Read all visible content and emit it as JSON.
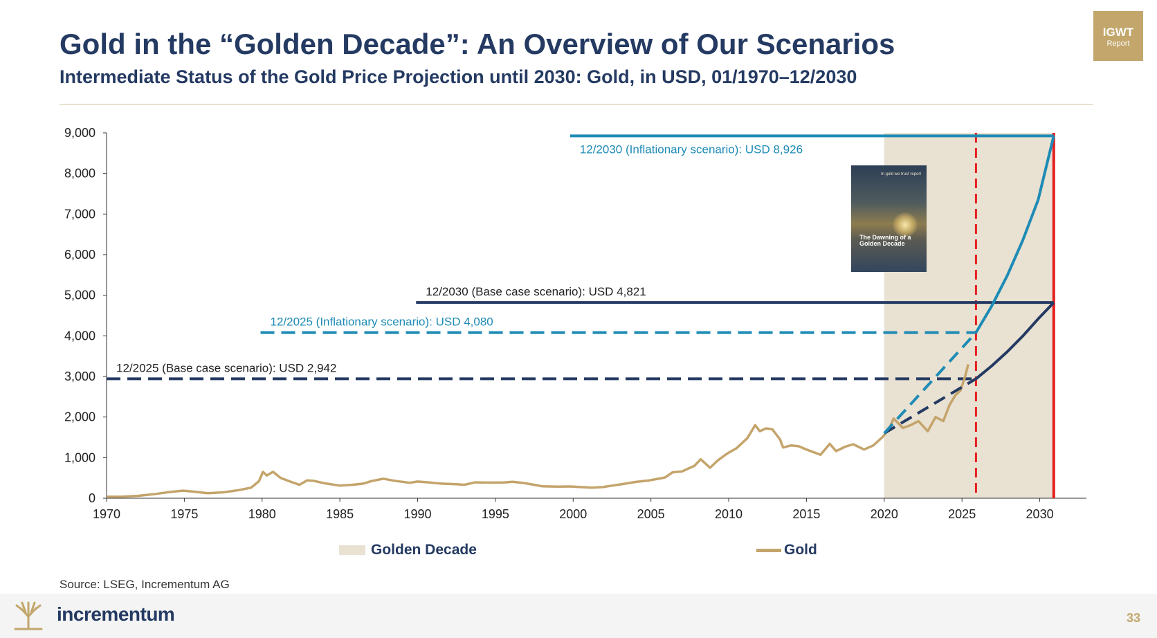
{
  "header": {
    "title": "Gold in the “Golden Decade”: An Overview of Our Scenarios",
    "subtitle": "Intermediate Status of the Gold Price Projection until 2030: Gold, in USD, 01/1970–12/2030",
    "badge_line1": "IGWT",
    "badge_line2": "Report"
  },
  "cover": {
    "header_text": "In gold we trust report",
    "title_text": "The Dawning of a Golden Decade"
  },
  "colors": {
    "navy": "#243a62",
    "teal": "#1e8bb5",
    "gold": "#c4a46b",
    "golden_decade_band": "#e9e1d2",
    "red": "#e51f1f"
  },
  "chart_data": {
    "type": "line",
    "x_range": [
      1970,
      2033
    ],
    "ylim": [
      0,
      9000
    ],
    "x_ticks": [
      1970,
      1975,
      1980,
      1985,
      1990,
      1995,
      2000,
      2005,
      2010,
      2015,
      2020,
      2025,
      2030
    ],
    "y_ticks": [
      0,
      1000,
      2000,
      3000,
      4000,
      5000,
      6000,
      7000,
      8000,
      9000
    ],
    "y_tick_labels": [
      "0",
      "1,000",
      "2,000",
      "3,000",
      "4,000",
      "5,000",
      "6,000",
      "7,000",
      "8,000",
      "9,000"
    ],
    "golden_decade": {
      "label": "Golden Decade",
      "from": 2020,
      "to": 2030.9
    },
    "vertical_markers": [
      {
        "x": 2025.9,
        "style": "dashed",
        "color": "#e51f1f"
      },
      {
        "x": 2030.9,
        "style": "solid",
        "color": "#e51f1f"
      }
    ],
    "series": [
      {
        "name": "Gold",
        "color": "#c4a46b",
        "points": [
          [
            1970.0,
            35
          ],
          [
            1971.0,
            40
          ],
          [
            1972.0,
            58
          ],
          [
            1973.0,
            97
          ],
          [
            1974.0,
            150
          ],
          [
            1974.9,
            185
          ],
          [
            1975.5,
            165
          ],
          [
            1976.5,
            125
          ],
          [
            1977.5,
            145
          ],
          [
            1978.5,
            200
          ],
          [
            1979.3,
            260
          ],
          [
            1979.8,
            420
          ],
          [
            1980.05,
            650
          ],
          [
            1980.3,
            560
          ],
          [
            1980.7,
            650
          ],
          [
            1981.2,
            500
          ],
          [
            1981.8,
            410
          ],
          [
            1982.4,
            330
          ],
          [
            1982.9,
            440
          ],
          [
            1983.3,
            430
          ],
          [
            1984.0,
            370
          ],
          [
            1985.0,
            310
          ],
          [
            1985.8,
            330
          ],
          [
            1986.5,
            360
          ],
          [
            1987.0,
            420
          ],
          [
            1987.8,
            480
          ],
          [
            1988.5,
            430
          ],
          [
            1989.5,
            380
          ],
          [
            1990.0,
            410
          ],
          [
            1990.7,
            390
          ],
          [
            1991.5,
            360
          ],
          [
            1992.5,
            345
          ],
          [
            1993.0,
            330
          ],
          [
            1993.7,
            390
          ],
          [
            1994.5,
            385
          ],
          [
            1995.5,
            385
          ],
          [
            1996.1,
            405
          ],
          [
            1996.9,
            370
          ],
          [
            1997.5,
            330
          ],
          [
            1998.0,
            295
          ],
          [
            1999.0,
            285
          ],
          [
            1999.8,
            290
          ],
          [
            2000.5,
            275
          ],
          [
            2001.2,
            260
          ],
          [
            2001.9,
            275
          ],
          [
            2002.5,
            310
          ],
          [
            2003.2,
            350
          ],
          [
            2004.0,
            400
          ],
          [
            2004.9,
            440
          ],
          [
            2005.9,
            510
          ],
          [
            2006.4,
            640
          ],
          [
            2007.0,
            660
          ],
          [
            2007.8,
            800
          ],
          [
            2008.2,
            960
          ],
          [
            2008.8,
            750
          ],
          [
            2009.3,
            930
          ],
          [
            2009.9,
            1100
          ],
          [
            2010.5,
            1230
          ],
          [
            2011.2,
            1480
          ],
          [
            2011.7,
            1800
          ],
          [
            2012.0,
            1650
          ],
          [
            2012.4,
            1720
          ],
          [
            2012.8,
            1700
          ],
          [
            2013.3,
            1450
          ],
          [
            2013.5,
            1250
          ],
          [
            2014.0,
            1300
          ],
          [
            2014.5,
            1280
          ],
          [
            2015.0,
            1200
          ],
          [
            2015.9,
            1070
          ],
          [
            2016.5,
            1340
          ],
          [
            2016.9,
            1160
          ],
          [
            2017.5,
            1270
          ],
          [
            2018.0,
            1330
          ],
          [
            2018.7,
            1200
          ],
          [
            2019.3,
            1300
          ],
          [
            2019.9,
            1510
          ],
          [
            2020.3,
            1700
          ],
          [
            2020.6,
            1960
          ],
          [
            2020.9,
            1850
          ],
          [
            2021.2,
            1730
          ],
          [
            2021.7,
            1800
          ],
          [
            2022.2,
            1900
          ],
          [
            2022.8,
            1650
          ],
          [
            2023.3,
            2000
          ],
          [
            2023.8,
            1900
          ],
          [
            2024.2,
            2300
          ],
          [
            2024.6,
            2550
          ],
          [
            2024.9,
            2650
          ],
          [
            2025.2,
            3000
          ],
          [
            2025.4,
            3300
          ]
        ]
      },
      {
        "name": "Base case scenario",
        "color": "#243a62",
        "points_dashed": [
          [
            2020.0,
            1600
          ],
          [
            2025.9,
            2942
          ]
        ],
        "points_solid": [
          [
            2025.9,
            2942
          ],
          [
            2026.9,
            3256
          ],
          [
            2027.9,
            3605
          ],
          [
            2028.9,
            3991
          ],
          [
            2029.9,
            4419
          ],
          [
            2030.9,
            4821
          ]
        ]
      },
      {
        "name": "Inflationary scenario",
        "color": "#1e8bb5",
        "points_dashed": [
          [
            2020.0,
            1600
          ],
          [
            2025.9,
            4080
          ]
        ],
        "points_solid": [
          [
            2025.9,
            4080
          ],
          [
            2026.9,
            4728
          ],
          [
            2027.9,
            5477
          ],
          [
            2028.9,
            6345
          ],
          [
            2029.9,
            7352
          ],
          [
            2030.9,
            8926
          ]
        ]
      }
    ],
    "reference_lines": [
      {
        "y": 8926,
        "from": 1999.8,
        "to": 2030.9,
        "style": "solid",
        "color": "#1e8bb5",
        "label": "12/2030 (Inflationary scenario): USD 8,926",
        "label_position": "below"
      },
      {
        "y": 4821,
        "from": 1989.9,
        "to": 2030.9,
        "style": "solid",
        "color": "#243a62",
        "label": "12/2030 (Base case scenario): USD 4,821",
        "label_position": "above"
      },
      {
        "y": 4080,
        "from": 1979.9,
        "to": 2025.9,
        "style": "dashed",
        "color": "#1e8bb5",
        "label": "12/2025 (Inflationary scenario): USD 4,080",
        "label_position": "above"
      },
      {
        "y": 2942,
        "from": 1970,
        "to": 2025.9,
        "style": "dashed",
        "color": "#243a62",
        "label": "12/2025 (Base case scenario): USD 2,942",
        "label_position": "above"
      }
    ],
    "legend": [
      "Golden Decade",
      "Gold"
    ]
  },
  "legend": {
    "golden_decade": "Golden Decade",
    "gold": "Gold"
  },
  "footer": {
    "source": "Source: LSEG, Incrementum AG",
    "brand": "incrementum",
    "page_number": "33"
  }
}
